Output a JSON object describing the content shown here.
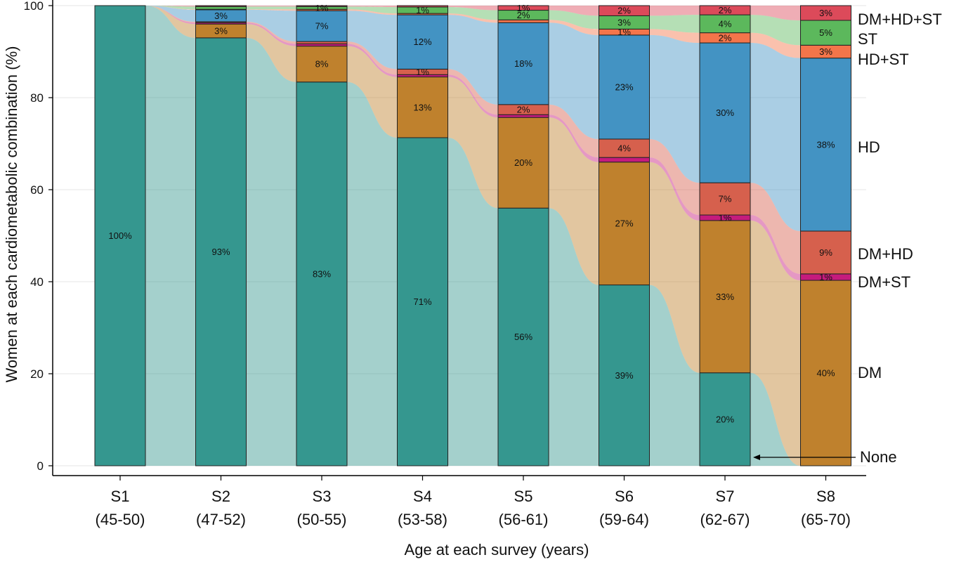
{
  "chart_data": {
    "type": "bar",
    "subtype": "stacked-alluvial",
    "title": "",
    "xlabel": "Age at each survey (years)",
    "ylabel": "Women at each cardiometabolic combination (%)",
    "ylim": [
      0,
      100
    ],
    "yticks": [
      0,
      20,
      40,
      60,
      80,
      100
    ],
    "grid": true,
    "legend_placement": "right (direct labels at last bar)",
    "categories": [
      "S1",
      "S2",
      "S3",
      "S4",
      "S5",
      "S6",
      "S7",
      "S8"
    ],
    "category_ages": [
      "(45-50)",
      "(47-52)",
      "(50-55)",
      "(53-58)",
      "(56-61)",
      "(59-64)",
      "(62-67)",
      "(65-70)"
    ],
    "stack_order": [
      "None",
      "DM",
      "DM+ST",
      "DM+HD",
      "HD",
      "HD+ST",
      "ST",
      "DM+HD+ST"
    ],
    "series": [
      {
        "name": "None",
        "color": "#35978f",
        "values": [
          100,
          93.0,
          83.4,
          71.3,
          56.0,
          39.3,
          20.2,
          0.0
        ],
        "labels": [
          "100%",
          "93%",
          "83%",
          "71%",
          "56%",
          "39%",
          "20%",
          ""
        ]
      },
      {
        "name": "DM",
        "color": "#bf812d",
        "values": [
          0,
          3.0,
          7.8,
          13.2,
          19.7,
          26.7,
          33.1,
          40.3
        ],
        "labels": [
          "",
          "3%",
          "8%",
          "13%",
          "20%",
          "27%",
          "33%",
          "40%"
        ]
      },
      {
        "name": "DM+ST",
        "color": "#c51b7d",
        "values": [
          0,
          0.3,
          0.5,
          0.5,
          0.6,
          1.0,
          1.2,
          1.4
        ],
        "labels": [
          "",
          "",
          "",
          "",
          "",
          "",
          "1%",
          "1%"
        ]
      },
      {
        "name": "DM+HD",
        "color": "#d6604d",
        "values": [
          0,
          0.2,
          0.5,
          1.2,
          2.2,
          4.0,
          7.0,
          9.3
        ],
        "labels": [
          "",
          "",
          "",
          "1%",
          "2%",
          "4%",
          "7%",
          "9%"
        ]
      },
      {
        "name": "HD",
        "color": "#4393c3",
        "values": [
          0,
          2.6,
          6.7,
          11.8,
          17.8,
          22.6,
          30.4,
          37.6
        ],
        "labels": [
          "",
          "3%",
          "7%",
          "12%",
          "18%",
          "23%",
          "30%",
          "38%"
        ]
      },
      {
        "name": "HD+ST",
        "color": "#f4754a",
        "values": [
          0,
          0.1,
          0.3,
          0.3,
          0.6,
          1.3,
          2.2,
          2.8
        ],
        "labels": [
          "",
          "",
          "",
          "",
          "",
          "1%",
          "2%",
          "3%"
        ]
      },
      {
        "name": "ST",
        "color": "#5cb85c",
        "values": [
          0,
          0.6,
          0.6,
          1.4,
          2.1,
          2.9,
          3.9,
          5.4
        ],
        "labels": [
          "",
          "",
          "1%",
          "1%",
          "2%",
          "3%",
          "4%",
          "5%"
        ]
      },
      {
        "name": "DM+HD+ST",
        "color": "#dc4a5a",
        "values": [
          0,
          0.2,
          0.2,
          0.3,
          1.0,
          2.2,
          2.0,
          3.2
        ],
        "labels": [
          "",
          "",
          "",
          "",
          "1%",
          "2%",
          "2%",
          "3%"
        ]
      }
    ],
    "annotations": [
      {
        "text": "None",
        "points_to": "S8 bottom (None = 0%)"
      }
    ]
  }
}
